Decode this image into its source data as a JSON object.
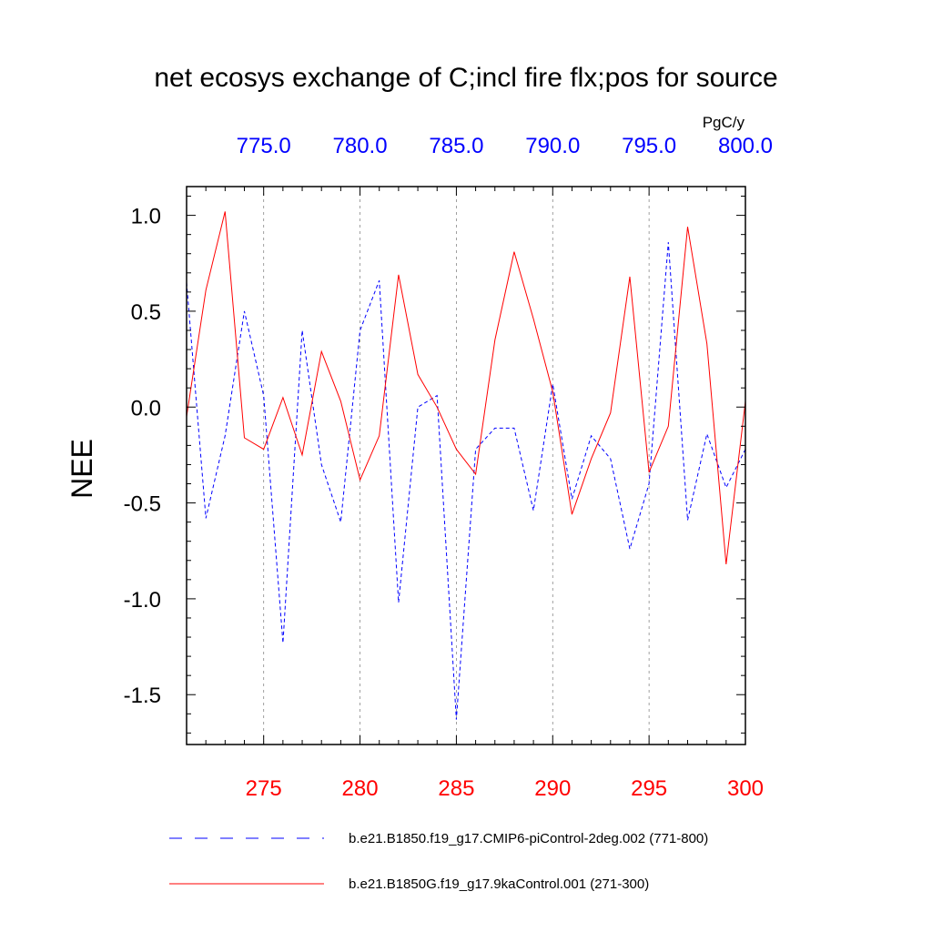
{
  "chart_data": {
    "type": "line",
    "title": "net ecosys exchange of C;incl fire flx;pos for source",
    "ylabel": "NEE",
    "units": "PgC/y",
    "ylim": [
      -1.76,
      1.15
    ],
    "y_ticks": [
      1.0,
      0.5,
      0.0,
      -0.5,
      -1.0,
      -1.5
    ],
    "y_tick_labels": [
      "1.0",
      "0.5",
      "0.0",
      "-0.5",
      "-1.0",
      "-1.5"
    ],
    "bottom_axis": {
      "xlim": [
        271,
        300
      ],
      "ticks": [
        275,
        280,
        285,
        290,
        295,
        300
      ],
      "tick_labels": [
        "275",
        "280",
        "285",
        "290",
        "295",
        "300"
      ],
      "color": "#ff0000"
    },
    "top_axis": {
      "xlim": [
        771,
        800
      ],
      "ticks": [
        775,
        780,
        785,
        790,
        795,
        800
      ],
      "tick_labels": [
        "775.0",
        "780.0",
        "785.0",
        "790.0",
        "795.0",
        "800.0"
      ],
      "color": "#0000ff"
    },
    "series": [
      {
        "name": "b.e21.B1850.f19_g17.CMIP6-piControl-2deg.002 (771-800)",
        "color": "#0000ff",
        "style": "dashed",
        "x": [
          771,
          772,
          773,
          774,
          775,
          776,
          777,
          778,
          779,
          780,
          781,
          782,
          783,
          784,
          785,
          786,
          787,
          788,
          789,
          790,
          791,
          792,
          793,
          794,
          795,
          796,
          797,
          798,
          799,
          800
        ],
        "values": [
          0.65,
          -0.58,
          -0.15,
          0.5,
          0.06,
          -1.23,
          0.4,
          -0.3,
          -0.6,
          0.4,
          0.66,
          -1.02,
          0.0,
          0.06,
          -1.63,
          -0.22,
          -0.11,
          -0.11,
          -0.54,
          0.12,
          -0.48,
          -0.15,
          -0.27,
          -0.74,
          -0.4,
          0.86,
          -0.59,
          -0.14,
          -0.42,
          -0.22
        ]
      },
      {
        "name": "b.e21.B1850G.f19_g17.9kaControl.001 (271-300)",
        "color": "#ff0000",
        "style": "solid",
        "x": [
          271,
          272,
          273,
          274,
          275,
          276,
          277,
          278,
          279,
          280,
          281,
          282,
          283,
          284,
          285,
          286,
          287,
          288,
          289,
          290,
          291,
          292,
          293,
          294,
          295,
          296,
          297,
          298,
          299,
          300
        ],
        "values": [
          -0.05,
          0.61,
          1.02,
          -0.16,
          -0.22,
          0.05,
          -0.25,
          0.29,
          0.03,
          -0.38,
          -0.15,
          0.69,
          0.17,
          0.0,
          -0.22,
          -0.35,
          0.35,
          0.81,
          0.46,
          0.08,
          -0.56,
          -0.27,
          -0.03,
          0.68,
          -0.34,
          -0.1,
          0.94,
          0.33,
          -0.82,
          0.03
        ]
      }
    ]
  }
}
